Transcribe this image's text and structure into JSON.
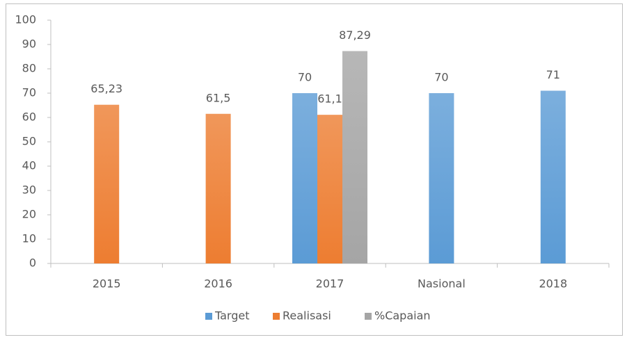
{
  "chart_data": {
    "type": "bar",
    "categories": [
      "2015",
      "2016",
      "2017",
      "Nasional",
      "2018"
    ],
    "series": [
      {
        "name": "Target",
        "color": "#5b9bd5",
        "values": [
          null,
          null,
          70,
          70,
          71
        ],
        "value_labels": [
          null,
          null,
          "70",
          "70",
          "71"
        ]
      },
      {
        "name": "Realisasi",
        "color": "#ed7d31",
        "values": [
          65.23,
          61.5,
          61.1,
          null,
          null
        ],
        "value_labels": [
          "65,23",
          "61,5",
          "61,1",
          null,
          null
        ]
      },
      {
        "name": "%Capaian",
        "color": "#a5a5a5",
        "values": [
          null,
          null,
          87.29,
          null,
          null
        ],
        "value_labels": [
          null,
          null,
          "87,29",
          null,
          null
        ]
      }
    ],
    "ylim": [
      0,
      100
    ],
    "yticks": [
      0,
      10,
      20,
      30,
      40,
      50,
      60,
      70,
      80,
      90,
      100
    ],
    "grid": false,
    "legend": "bottom"
  }
}
